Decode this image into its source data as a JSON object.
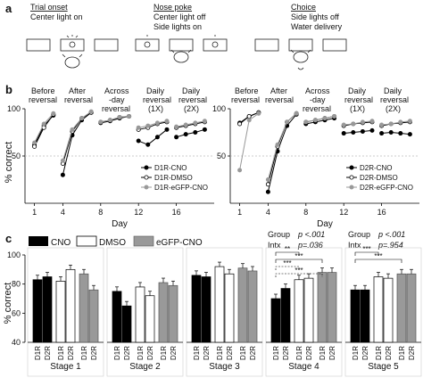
{
  "panel_labels": {
    "a": "a",
    "b": "b",
    "c": "c"
  },
  "panel_a": {
    "steps": [
      {
        "title": "Trial onset",
        "desc": [
          "Center light on"
        ]
      },
      {
        "title": "Nose poke",
        "desc": [
          "Center light off",
          "Side lights on"
        ]
      },
      {
        "title": "Choice",
        "desc": [
          "Side lights off",
          "Water delivery"
        ]
      }
    ]
  },
  "panel_b": {
    "stage_headers": [
      [
        "Before",
        "reversal"
      ],
      [
        "After",
        "reversal"
      ],
      [
        "Across",
        "-day",
        "reversal"
      ],
      [
        "Daily",
        "reversal",
        "(1X)"
      ],
      [
        "Daily",
        "reversal",
        "(2X)"
      ]
    ],
    "ylabel": "% correct",
    "xlabel": "Day"
  },
  "panel_c": {
    "legend": [
      "CNO",
      "DMSO",
      "eGFP-CNO"
    ],
    "ylabel": "% correct",
    "stage4_stats": {
      "group": "Group",
      "group_p": "p <.001",
      "intx": "Intx",
      "intx_p": "p=.036"
    },
    "stage5_stats": {
      "group": "Group",
      "group_p": "p <.001",
      "intx": "Intx",
      "intx_p": "p=.954"
    }
  },
  "chart_data": [
    {
      "type": "line",
      "panel": "b-left",
      "xlabel": "Day",
      "ylabel": "% correct",
      "xlim": [
        0,
        20
      ],
      "ylim": [
        0,
        100
      ],
      "xticks": [
        1,
        4,
        8,
        12,
        16
      ],
      "yticks": [
        50,
        100
      ],
      "chance_line": 50,
      "series": [
        {
          "name": "D1R-CNO",
          "x": [
            1,
            2,
            3,
            4,
            5,
            6,
            7,
            8,
            9,
            10,
            11,
            12,
            13,
            14,
            15,
            16,
            17,
            18,
            19
          ],
          "y": [
            62,
            82,
            93,
            30,
            72,
            88,
            96,
            85,
            87,
            90,
            92,
            66,
            62,
            70,
            78,
            70,
            73,
            75,
            78
          ]
        },
        {
          "name": "D1R-DMSO",
          "x": [
            1,
            2,
            3,
            4,
            5,
            6,
            7,
            8,
            9,
            10,
            11,
            12,
            13,
            14,
            15,
            16,
            17,
            18,
            19
          ],
          "y": [
            60,
            80,
            94,
            42,
            76,
            90,
            96,
            86,
            88,
            91,
            92,
            78,
            80,
            84,
            86,
            80,
            82,
            84,
            86
          ]
        },
        {
          "name": "D1R-eGFP-CNO",
          "x": [
            1,
            2,
            3,
            4,
            5,
            6,
            7,
            8,
            9,
            10,
            11,
            12,
            13,
            14,
            15,
            16,
            17,
            18,
            19
          ],
          "y": [
            64,
            84,
            95,
            45,
            78,
            90,
            97,
            86,
            88,
            91,
            92,
            80,
            82,
            85,
            87,
            81,
            83,
            85,
            87
          ]
        }
      ]
    },
    {
      "type": "line",
      "panel": "b-right",
      "xlabel": "Day",
      "ylabel": "% correct",
      "xlim": [
        0,
        20
      ],
      "ylim": [
        0,
        100
      ],
      "xticks": [
        1,
        4,
        8,
        12,
        16
      ],
      "yticks": [
        50,
        100
      ],
      "chance_line": 50,
      "series": [
        {
          "name": "D2R-CNO",
          "x": [
            1,
            2,
            3,
            4,
            5,
            6,
            7,
            8,
            9,
            10,
            11,
            12,
            13,
            14,
            15,
            16,
            17,
            18,
            19
          ],
          "y": [
            85,
            92,
            96,
            12,
            55,
            82,
            94,
            84,
            86,
            88,
            90,
            74,
            75,
            76,
            77,
            74,
            75,
            74,
            73
          ]
        },
        {
          "name": "D2R-DMSO",
          "x": [
            1,
            2,
            3,
            4,
            5,
            6,
            7,
            8,
            9,
            10,
            11,
            12,
            13,
            14,
            15,
            16,
            17,
            18,
            19
          ],
          "y": [
            84,
            92,
            96,
            20,
            60,
            86,
            95,
            86,
            88,
            90,
            92,
            82,
            84,
            85,
            86,
            82,
            84,
            85,
            86
          ]
        },
        {
          "name": "D2R-eGFP-CNO",
          "x": [
            1,
            2,
            3,
            4,
            5,
            6,
            7,
            8,
            9,
            10,
            11,
            12,
            13,
            14,
            15,
            16,
            17,
            18,
            19
          ],
          "y": [
            35,
            88,
            95,
            25,
            62,
            86,
            95,
            86,
            88,
            90,
            92,
            83,
            84,
            86,
            87,
            83,
            84,
            86,
            87
          ]
        }
      ]
    },
    {
      "type": "bar",
      "panel": "c",
      "ylabel": "% correct",
      "ylim": [
        40,
        100
      ],
      "yticks": [
        40,
        60,
        80,
        100
      ],
      "categories": [
        "D1R",
        "D2R"
      ],
      "series_names": [
        "CNO",
        "DMSO",
        "eGFP-CNO"
      ],
      "stages": [
        {
          "name": "Stage 1",
          "values": {
            "CNO": [
              83,
              85
            ],
            "DMSO": [
              82,
              90
            ],
            "eGFP-CNO": [
              87,
              76
            ]
          }
        },
        {
          "name": "Stage 2",
          "values": {
            "CNO": [
              75,
              65
            ],
            "DMSO": [
              78,
              72
            ],
            "eGFP-CNO": [
              81,
              79
            ]
          }
        },
        {
          "name": "Stage 3",
          "values": {
            "CNO": [
              86,
              85
            ],
            "DMSO": [
              92,
              87
            ],
            "eGFP-CNO": [
              91,
              89
            ]
          }
        },
        {
          "name": "Stage 4",
          "values": {
            "CNO": [
              70,
              77
            ],
            "DMSO": [
              83,
              84
            ],
            "eGFP-CNO": [
              88,
              88
            ]
          },
          "significance": [
            "**",
            "***",
            "***",
            "***"
          ]
        },
        {
          "name": "Stage 5",
          "values": {
            "CNO": [
              76,
              76
            ],
            "DMSO": [
              85,
              84
            ],
            "eGFP-CNO": [
              87,
              87
            ]
          },
          "significance": [
            "***",
            "***"
          ]
        }
      ]
    }
  ]
}
